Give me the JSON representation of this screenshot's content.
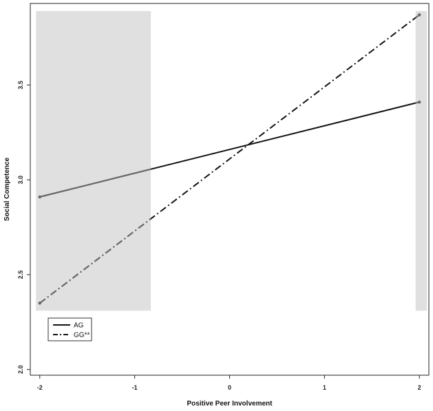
{
  "chart_data": {
    "type": "line",
    "xlabel": "Positive Peer Involvement",
    "ylabel": "Social Competence",
    "xlim": [
      -2.1,
      2.1
    ],
    "ylim": [
      1.97,
      3.93
    ],
    "x_ticks": [
      -2,
      -1,
      0,
      1,
      2
    ],
    "y_ticks": [
      2.0,
      2.5,
      3.0,
      3.5
    ],
    "x_tick_labels": [
      "-2",
      "-1",
      "0",
      "1",
      "2"
    ],
    "y_tick_labels": [
      "2.0",
      "2.5",
      "3.0",
      "3.5"
    ],
    "grid": false,
    "legend_position": "bottom-left",
    "shaded_regions": [
      {
        "x": [
          -2.04,
          -0.83
        ],
        "y": [
          2.31,
          3.89
        ]
      },
      {
        "x": [
          1.96,
          2.08
        ],
        "y": [
          2.31,
          3.89
        ]
      }
    ],
    "series": [
      {
        "name": "AG",
        "x": [
          -2,
          2
        ],
        "y": [
          2.91,
          3.41
        ],
        "line_style": "solid",
        "color": "#111111"
      },
      {
        "name": "GG**",
        "x": [
          -2,
          2
        ],
        "y": [
          2.35,
          3.87
        ],
        "line_style": "dash-dot",
        "color": "#111111"
      }
    ]
  }
}
